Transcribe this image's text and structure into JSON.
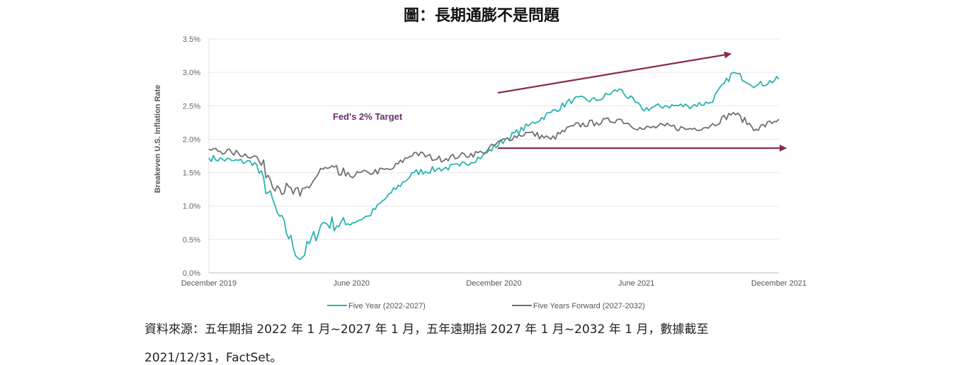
{
  "title": "圖：長期通膨不是問題",
  "chart_data": {
    "type": "line",
    "ylabel": "Breakeven U.S. Inflation Rate",
    "ylim": [
      0,
      3.5
    ],
    "yticks": [
      "0.0%",
      "0.5%",
      "1.0%",
      "1.5%",
      "2.0%",
      "2.5%",
      "3.0%",
      "3.5%"
    ],
    "xlim": [
      "2019-12",
      "2021-12"
    ],
    "xticks": [
      "December 2019",
      "June 2020",
      "December 2020",
      "June 2021",
      "December 2021"
    ],
    "annotation": "Fed's 2% Target",
    "legend_position": "bottom",
    "x": [
      "2019-12",
      "2020-01",
      "2020-02",
      "2020-03a",
      "2020-03b",
      "2020-04",
      "2020-05",
      "2020-06",
      "2020-07",
      "2020-08",
      "2020-09",
      "2020-10",
      "2020-11",
      "2020-12",
      "2021-01",
      "2021-02",
      "2021-03",
      "2021-04",
      "2021-05",
      "2021-06",
      "2021-07",
      "2021-08",
      "2021-09",
      "2021-10",
      "2021-11",
      "2021-12"
    ],
    "series": [
      {
        "name": "Five Year (2022-2027)",
        "color": "#2bb3b1",
        "values": [
          1.72,
          1.68,
          1.65,
          0.9,
          0.2,
          0.75,
          0.72,
          0.85,
          1.2,
          1.5,
          1.55,
          1.6,
          1.75,
          2.0,
          2.2,
          2.4,
          2.6,
          2.58,
          2.75,
          2.45,
          2.5,
          2.5,
          2.55,
          3.0,
          2.8,
          2.9
        ]
      },
      {
        "name": "Five Years Forward (2027-2032)",
        "color": "#707070",
        "values": [
          1.85,
          1.8,
          1.75,
          1.3,
          1.15,
          1.55,
          1.45,
          1.5,
          1.55,
          1.8,
          1.7,
          1.75,
          1.8,
          2.0,
          2.1,
          2.0,
          2.2,
          2.25,
          2.3,
          2.15,
          2.2,
          2.15,
          2.2,
          2.4,
          2.15,
          2.3
        ]
      }
    ]
  },
  "source": {
    "line1": "資料來源：五年期指 2022 年 1 月~2027 年 1 月，五年遠期指 2027 年 1 月~2032 年 1 月，數據截至",
    "line2": "2021/12/31，FactSet。"
  }
}
